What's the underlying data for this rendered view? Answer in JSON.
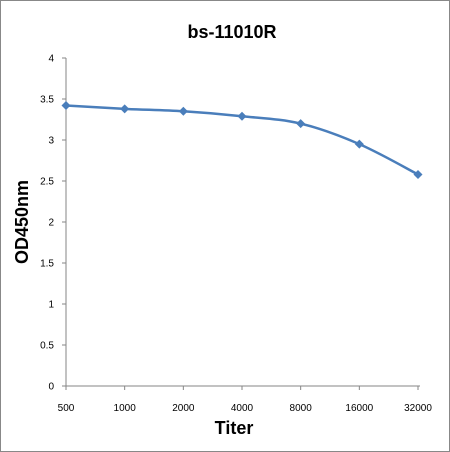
{
  "chart_data": {
    "type": "line",
    "title": "bs-11010R",
    "xlabel": "Titer",
    "ylabel": "OD450nm",
    "categories": [
      "500",
      "1000",
      "2000",
      "4000",
      "8000",
      "16000",
      "32000"
    ],
    "series": [
      {
        "values": [
          3.42,
          3.38,
          3.35,
          3.29,
          3.2,
          2.95,
          2.58
        ],
        "color": "#4a7ebb"
      }
    ],
    "ylim": [
      0,
      4
    ],
    "yticks": [
      "0",
      "0.5",
      "1",
      "1.5",
      "2",
      "2.5",
      "3",
      "3.5",
      "4"
    ],
    "grid": false,
    "legend": "none"
  }
}
